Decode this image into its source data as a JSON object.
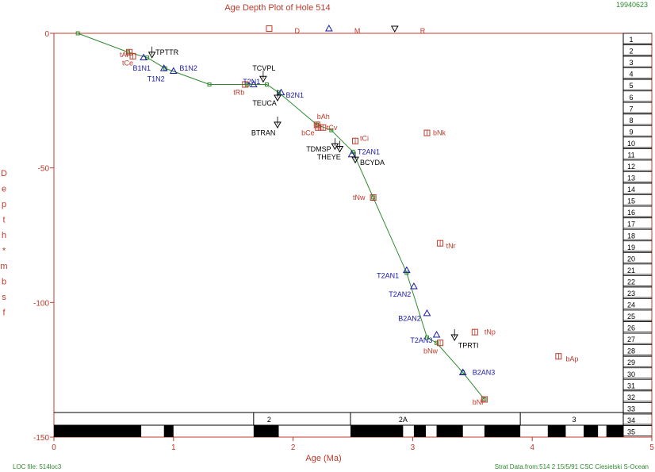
{
  "header": {
    "title": "Age Depth Plot of Hole 514",
    "date_code": "19940623"
  },
  "top_legend": [
    {
      "key": "square",
      "label": "D",
      "x": 1.8
    },
    {
      "key": "triangle",
      "label": "M",
      "x": 2.3
    },
    {
      "key": "invtriangle",
      "label": "R",
      "x": 2.85
    }
  ],
  "footer": {
    "loc_file": "LOC file: 514loc3",
    "strat_data": "Strat Data.from:514 2  15/5/91 CSC Ciesielski S-Ocean"
  },
  "colors": {
    "axis": "#c0392b",
    "line": "#2e8b2e",
    "diatom": "#c0392b",
    "nanno": "#1a1aa8",
    "radiolarian": "#000000"
  },
  "chart_data": {
    "type": "scatter",
    "xlabel": "Age (Ma)",
    "ylabel": "Depth * mbsf",
    "xlim": [
      0,
      5
    ],
    "ylim": [
      0,
      -150
    ],
    "xticks": [
      "0",
      "1",
      "2",
      "3",
      "4",
      "5"
    ],
    "yticks": [
      "0",
      "-50",
      "-100",
      "-150"
    ],
    "age_depth_line": [
      [
        0.2,
        0
      ],
      [
        0.62,
        -7
      ],
      [
        0.78,
        -9
      ],
      [
        0.93,
        -13
      ],
      [
        1.3,
        -19
      ],
      [
        1.62,
        -19
      ],
      [
        1.78,
        -19
      ],
      [
        1.88,
        -22
      ],
      [
        2.2,
        -34
      ],
      [
        2.32,
        -36
      ],
      [
        2.5,
        -44
      ],
      [
        2.67,
        -61
      ],
      [
        2.95,
        -89
      ],
      [
        3.12,
        -113
      ],
      [
        3.2,
        -115
      ],
      [
        3.42,
        -126
      ],
      [
        3.6,
        -136
      ]
    ],
    "diatom_events": [
      {
        "name": "tAl",
        "x": 0.63,
        "y": -7,
        "lx": 0.55,
        "ly": -8
      },
      {
        "name": "tCe",
        "x": 0.66,
        "y": -8.5,
        "lx": 0.57,
        "ly": -11
      },
      {
        "name": "tRb",
        "x": 1.6,
        "y": -19,
        "lx": 1.5,
        "ly": -22
      },
      {
        "name": "bAh",
        "x": 2.2,
        "y": -34,
        "lx": 2.2,
        "ly": -31
      },
      {
        "name": "bCe",
        "x": 2.21,
        "y": -35,
        "lx": 2.07,
        "ly": -37
      },
      {
        "name": "tCv",
        "x": 2.25,
        "y": -35,
        "lx": 2.28,
        "ly": -35
      },
      {
        "name": "tCi",
        "x": 2.52,
        "y": -40,
        "lx": 2.56,
        "ly": -39
      },
      {
        "name": "bNk",
        "x": 3.12,
        "y": -37,
        "lx": 3.17,
        "ly": -37
      },
      {
        "name": "tNw",
        "x": 2.67,
        "y": -61,
        "lx": 2.5,
        "ly": -61
      },
      {
        "name": "tNr",
        "x": 3.23,
        "y": -78,
        "lx": 3.28,
        "ly": -79
      },
      {
        "name": "tNp",
        "x": 3.52,
        "y": -111,
        "lx": 3.6,
        "ly": -111
      },
      {
        "name": "bNw",
        "x": 3.23,
        "y": -115,
        "lx": 3.09,
        "ly": -118
      },
      {
        "name": "bAp",
        "x": 4.22,
        "y": -120,
        "lx": 4.28,
        "ly": -121
      },
      {
        "name": "bNi",
        "x": 3.6,
        "y": -136,
        "lx": 3.5,
        "ly": -137
      }
    ],
    "nanno_events": [
      {
        "name": "B1N1",
        "x": 0.75,
        "y": -9,
        "lx": 0.66,
        "ly": -13
      },
      {
        "name": "T1N2",
        "x": 0.92,
        "y": -13,
        "lx": 0.78,
        "ly": -17
      },
      {
        "name": "B1N2",
        "x": 1.0,
        "y": -14,
        "lx": 1.05,
        "ly": -13
      },
      {
        "name": "T2N1",
        "x": 1.67,
        "y": -19,
        "lx": 1.58,
        "ly": -18
      },
      {
        "name": "B2N1",
        "x": 1.9,
        "y": -22,
        "lx": 1.94,
        "ly": -23
      },
      {
        "name": "T2AN1",
        "x": 2.49,
        "y": -45,
        "lx": 2.54,
        "ly": -44
      },
      {
        "name": "T2AN1",
        "x": 2.95,
        "y": -88,
        "lx": 2.7,
        "ly": -90
      },
      {
        "name": "T2AN2",
        "x": 3.01,
        "y": -94,
        "lx": 2.8,
        "ly": -97
      },
      {
        "name": "B2AN2",
        "x": 3.12,
        "y": -104,
        "lx": 2.88,
        "ly": -106
      },
      {
        "name": "T2AN3",
        "x": 3.2,
        "y": -112,
        "lx": 2.98,
        "ly": -114
      },
      {
        "name": "B2AN3",
        "x": 3.42,
        "y": -126,
        "lx": 3.5,
        "ly": -126
      }
    ],
    "radiolarian_events": [
      {
        "name": "TPTTR",
        "x": 0.82,
        "y": -7,
        "lx": 0.85,
        "ly": -7
      },
      {
        "name": "TCVPL",
        "x": 1.75,
        "y": -16,
        "lx": 1.66,
        "ly": -13
      },
      {
        "name": "TEUCA",
        "x": 1.87,
        "y": -23,
        "lx": 1.66,
        "ly": -26
      },
      {
        "name": "BTRAN",
        "x": 1.87,
        "y": -33,
        "lx": 1.65,
        "ly": -37
      },
      {
        "name": "TDMSP",
        "x": 2.35,
        "y": -41,
        "lx": 2.11,
        "ly": -43
      },
      {
        "name": "THEYE",
        "x": 2.39,
        "y": -42,
        "lx": 2.2,
        "ly": -46
      },
      {
        "name": "BCYDA",
        "x": 2.52,
        "y": -46,
        "lx": 2.56,
        "ly": -48
      },
      {
        "name": "TPRTI",
        "x": 3.35,
        "y": -112,
        "lx": 3.38,
        "ly": -116
      }
    ],
    "magnetostratigraphy": {
      "chron_labels": [
        {
          "label": "2",
          "x": 1.8
        },
        {
          "label": "2A",
          "x": 2.92
        },
        {
          "label": "3",
          "x": 4.35
        }
      ],
      "chron_bounds": [
        1.67,
        2.48,
        3.9
      ],
      "normal_intervals": [
        [
          0,
          0.73
        ],
        [
          0.92,
          1.0
        ],
        [
          1.67,
          1.88
        ],
        [
          2.48,
          2.92
        ],
        [
          3.01,
          3.11
        ],
        [
          3.2,
          3.42
        ],
        [
          3.6,
          3.9
        ],
        [
          4.13,
          4.28
        ],
        [
          4.43,
          4.55
        ],
        [
          4.62,
          5.0
        ]
      ]
    },
    "core_numbers": [
      "1",
      "2",
      "3",
      "4",
      "5",
      "6",
      "7",
      "8",
      "9",
      "10",
      "11",
      "12",
      "13",
      "14",
      "15",
      "16",
      "17",
      "18",
      "19",
      "20",
      "21",
      "22",
      "23",
      "24",
      "25",
      "26",
      "27",
      "28",
      "29",
      "30",
      "31",
      "32",
      "33",
      "34",
      "35"
    ]
  }
}
